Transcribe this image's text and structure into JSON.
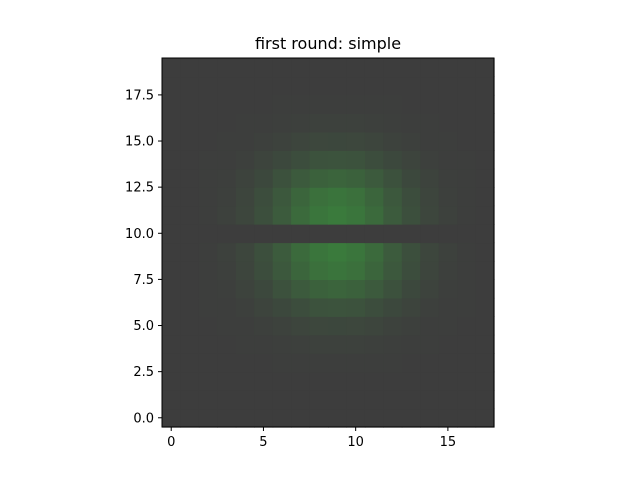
{
  "chart_data": {
    "type": "heatmap",
    "title": "first round: simple",
    "xlabel": "",
    "ylabel": "",
    "x_ticks": [
      0,
      5,
      10,
      15
    ],
    "y_ticks": [
      0.0,
      2.5,
      5.0,
      7.5,
      10.0,
      12.5,
      15.0,
      17.5
    ],
    "x_tick_labels": [
      "0",
      "5",
      "10",
      "15"
    ],
    "y_tick_labels": [
      "0.0",
      "2.5",
      "5.0",
      "7.5",
      "10.0",
      "12.5",
      "15.0",
      "17.5"
    ],
    "xlim": [
      -0.5,
      17.5
    ],
    "ylim": [
      -0.5,
      19.5
    ],
    "grid": false,
    "columns": 18,
    "rows": 20,
    "peak_x": 9,
    "peak_y_upper": 11,
    "peak_y_lower": 9,
    "gap_row": 10,
    "base_color": "#3d3d3d",
    "peak_color": "#3a7a3c",
    "axis_color": "#000000"
  }
}
